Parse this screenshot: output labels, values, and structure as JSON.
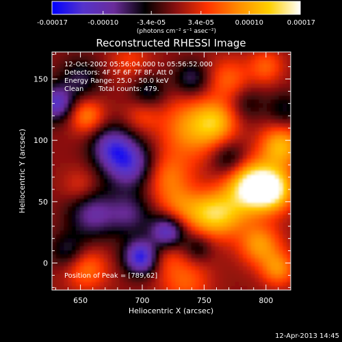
{
  "chart_data": {
    "type": "heatmap",
    "title": "Reconstructed RHESSI Image",
    "xlabel": "Heliocentric X (arcsec)",
    "ylabel": "Heliocentric Y (arcsec)",
    "xlim": [
      627,
      820
    ],
    "ylim": [
      -22,
      172
    ],
    "xticks": [
      650,
      700,
      750,
      800
    ],
    "yticks": [
      0,
      50,
      100,
      150
    ],
    "colorbar": {
      "min": -0.00017,
      "max": 0.00017,
      "ticks": [
        -0.00017,
        -0.0001,
        -3.4e-05,
        3.4e-05,
        0.0001,
        0.00017
      ],
      "tick_labels": [
        "-0.00017",
        "-0.00010",
        "-3.4e-05",
        "3.4e-05",
        "0.00010",
        "0.00017"
      ],
      "unit_label": "(photons cm⁻² s⁻¹ asec⁻²)",
      "colors": [
        "#0000ff",
        "#5533cc",
        "#6a2c9a",
        "#000000",
        "#8a1010",
        "#ff3300",
        "#ff8c00",
        "#ffd000",
        "#ffffff"
      ]
    },
    "annotations": {
      "time_range": "12-Oct-2002 05:56:04.000 to 05:56:52.000",
      "detectors": "Detectors: 4F 5F 6F 7F 8F, Att 0",
      "energy": "Energy Range: 25.0 - 50.0 keV",
      "clean_label": "Clean",
      "total_counts": "Total counts: 479.",
      "peak": "Position of Peak = [789,62]"
    },
    "peak": {
      "x": 789,
      "y": 62
    },
    "blobs": [
      {
        "x": 789,
        "y": 62,
        "v": 0.00017,
        "r": 14
      },
      {
        "x": 806,
        "y": 60,
        "v": 0.00013,
        "r": 12
      },
      {
        "x": 812,
        "y": 95,
        "v": 0.00011,
        "r": 12
      },
      {
        "x": 765,
        "y": 40,
        "v": 0.0001,
        "r": 14
      },
      {
        "x": 740,
        "y": 110,
        "v": 9e-05,
        "r": 18
      },
      {
        "x": 760,
        "y": 115,
        "v": 8e-05,
        "r": 12
      },
      {
        "x": 750,
        "y": 40,
        "v": 6e-05,
        "r": 12
      },
      {
        "x": 720,
        "y": 70,
        "v": 7e-05,
        "r": 14
      },
      {
        "x": 715,
        "y": 8,
        "v": 6e-05,
        "r": 12
      },
      {
        "x": 730,
        "y": 45,
        "v": 6e-05,
        "r": 12
      },
      {
        "x": 655,
        "y": -5,
        "v": 7e-05,
        "r": 12
      },
      {
        "x": 735,
        "y": -15,
        "v": 6e-05,
        "r": 14
      },
      {
        "x": 770,
        "y": 150,
        "v": 6e-05,
        "r": 12
      },
      {
        "x": 795,
        "y": 15,
        "v": 9e-05,
        "r": 12
      },
      {
        "x": 810,
        "y": -5,
        "v": 8e-05,
        "r": 10
      },
      {
        "x": 655,
        "y": 120,
        "v": 8e-05,
        "r": 10
      },
      {
        "x": 650,
        "y": 62,
        "v": 4e-05,
        "r": 10
      },
      {
        "x": 690,
        "y": 165,
        "v": 4e-05,
        "r": 12
      },
      {
        "x": 700,
        "y": 120,
        "v": 4e-05,
        "r": 10
      },
      {
        "x": 800,
        "y": 160,
        "v": 6e-05,
        "r": 10
      },
      {
        "x": 690,
        "y": 80,
        "v": -0.00012,
        "r": 14
      },
      {
        "x": 675,
        "y": 95,
        "v": -0.0001,
        "r": 12
      },
      {
        "x": 700,
        "y": 5,
        "v": -0.00017,
        "r": 10
      },
      {
        "x": 720,
        "y": 25,
        "v": -0.00014,
        "r": 10
      },
      {
        "x": 660,
        "y": 40,
        "v": -9e-05,
        "r": 14
      },
      {
        "x": 630,
        "y": 130,
        "v": -0.00012,
        "r": 10
      },
      {
        "x": 650,
        "y": 150,
        "v": -6e-05,
        "r": 12
      },
      {
        "x": 705,
        "y": 140,
        "v": -6e-05,
        "r": 10
      },
      {
        "x": 690,
        "y": 40,
        "v": -7e-05,
        "r": 12
      },
      {
        "x": 740,
        "y": 150,
        "v": -7e-05,
        "r": 10
      },
      {
        "x": 770,
        "y": 85,
        "v": -6e-05,
        "r": 10
      },
      {
        "x": 815,
        "y": 125,
        "v": -5e-05,
        "r": 10
      },
      {
        "x": 745,
        "y": 12,
        "v": -5e-05,
        "r": 8
      },
      {
        "x": 640,
        "y": 10,
        "v": -6e-05,
        "r": 10
      },
      {
        "x": 785,
        "y": 130,
        "v": -4e-05,
        "r": 10
      }
    ]
  },
  "footer": {
    "timestamp": "12-Apr-2013 14:45"
  }
}
